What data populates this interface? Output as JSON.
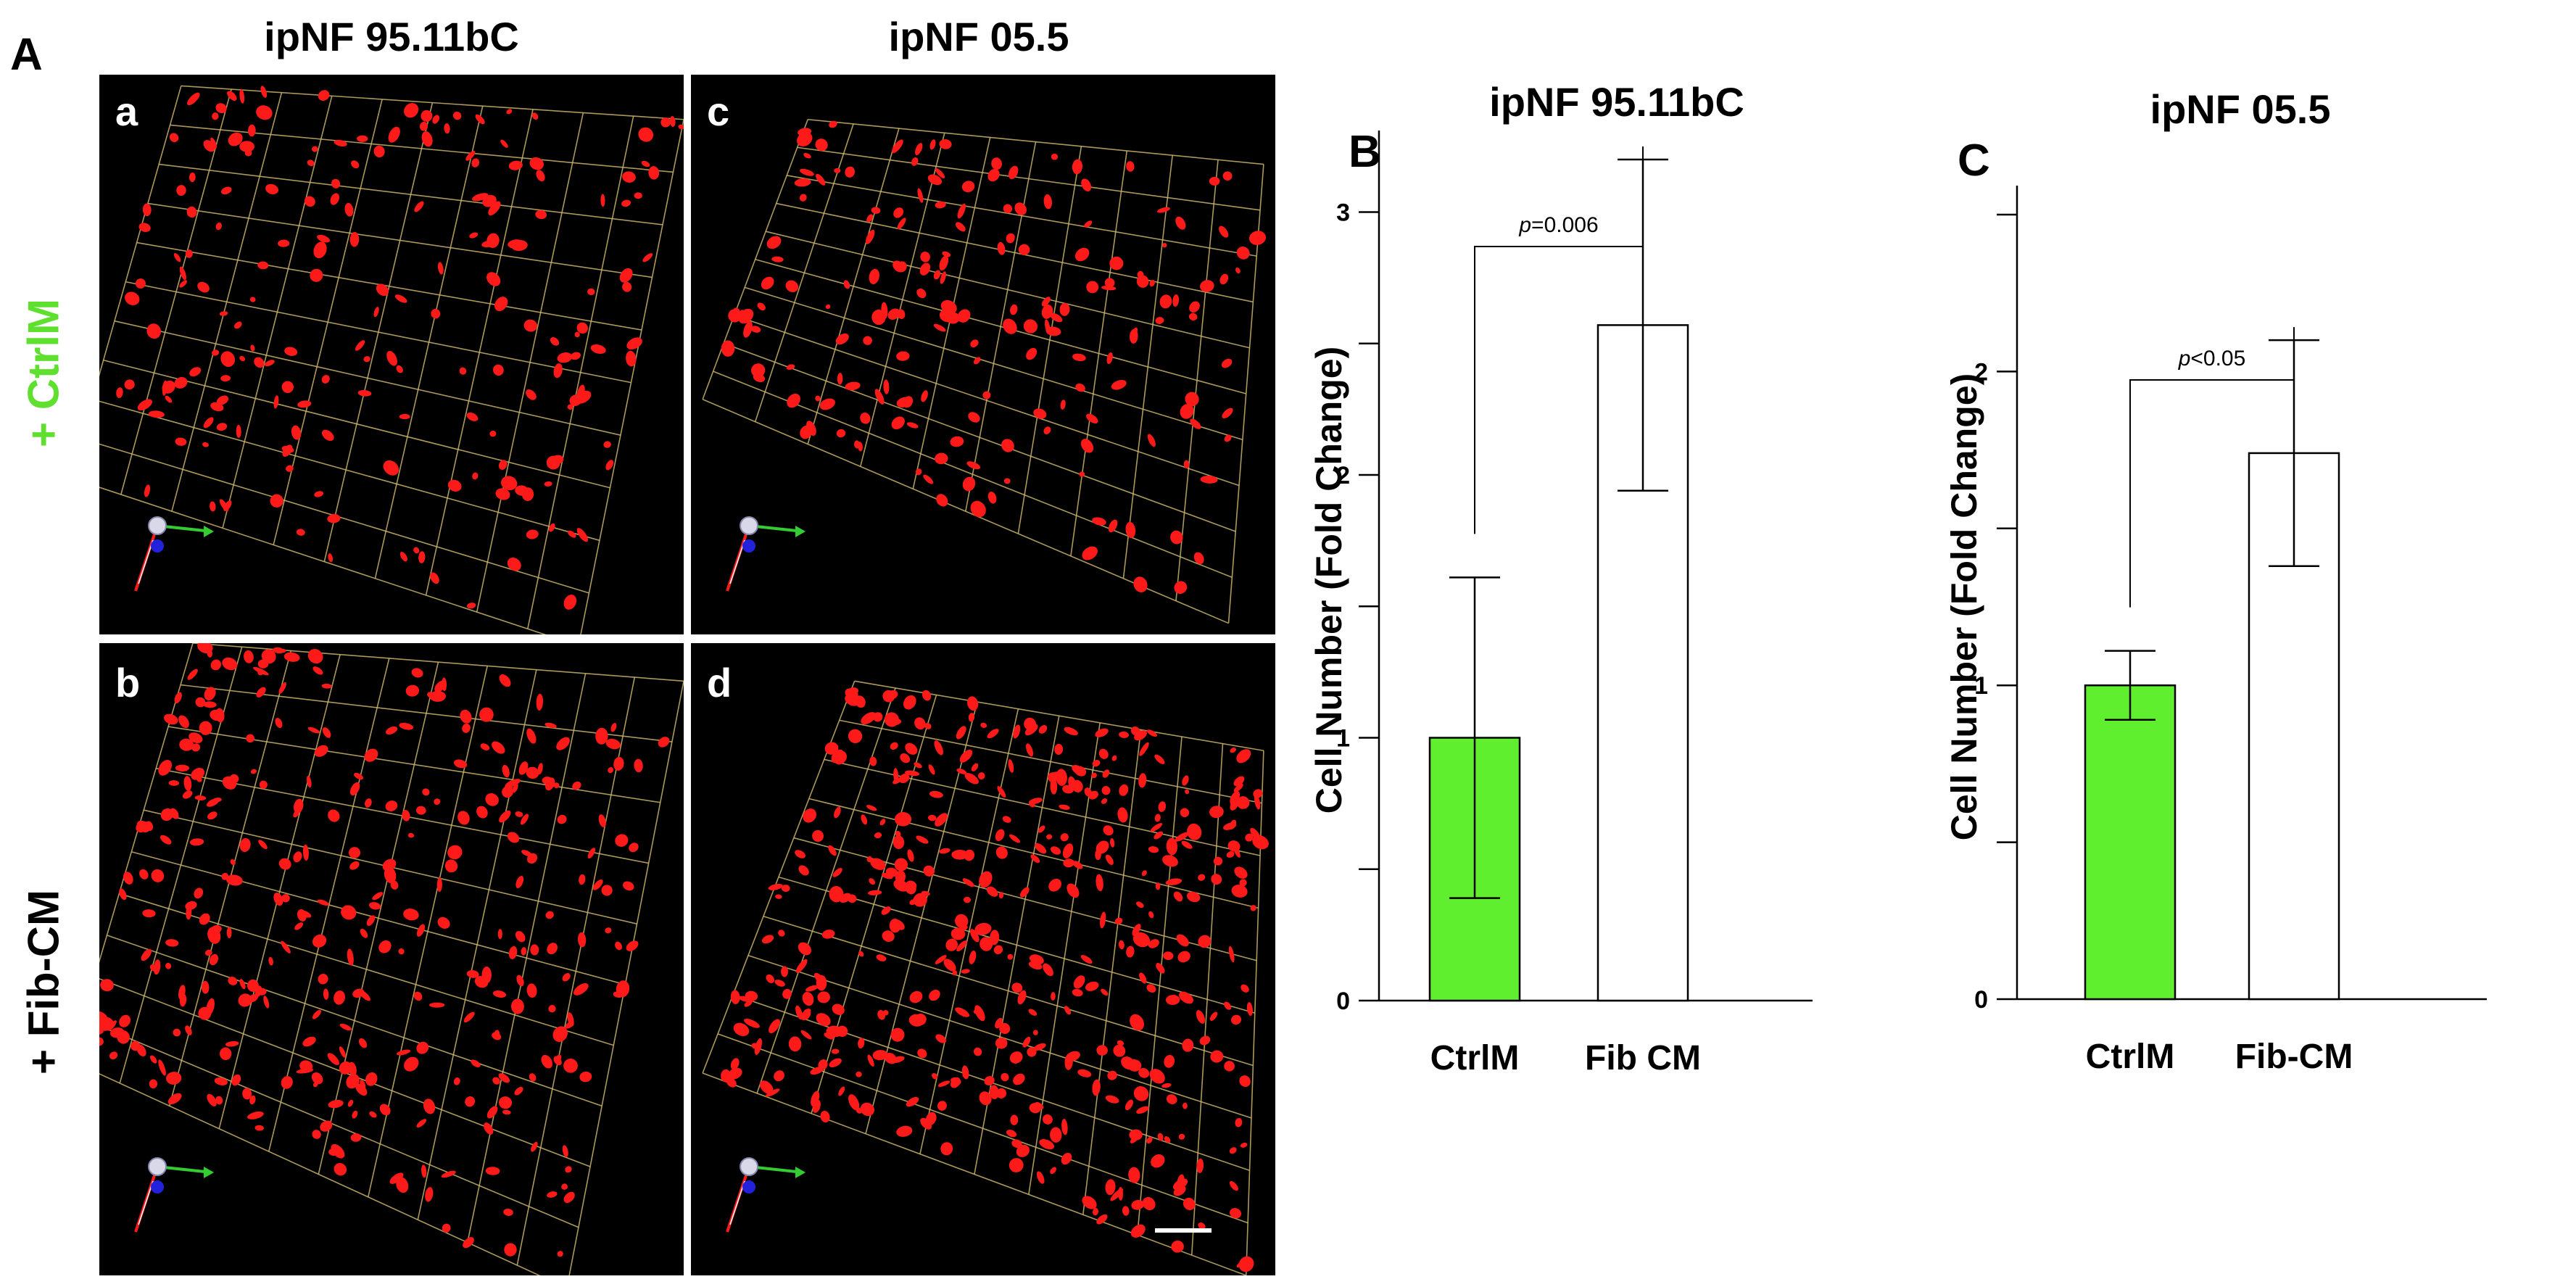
{
  "figure": {
    "panel_A_label": "A",
    "column_titles": [
      "ipNF 95.11bC",
      "ipNF 05.5"
    ],
    "row_labels": [
      {
        "text": "+ CtrlM",
        "color": "#5fe02f"
      },
      {
        "text": "+ Fib-CM",
        "color": "#000000"
      }
    ],
    "image_panels": [
      {
        "letter": "a",
        "condition": "CtrlM",
        "cell_line": "ipNF 95.11bC"
      },
      {
        "letter": "c",
        "condition": "CtrlM",
        "cell_line": "ipNF 05.5"
      },
      {
        "letter": "b",
        "condition": "Fib-CM",
        "cell_line": "ipNF 95.11bC"
      },
      {
        "letter": "d",
        "condition": "Fib-CM",
        "cell_line": "ipNF 05.5"
      }
    ],
    "colors": {
      "cells": "#ff1a1a",
      "grid": "#c8b46a",
      "bar_green": "#5fef2f",
      "axis_x": "#33cc33",
      "axis_z": "#2222dd"
    }
  },
  "chart_data": [
    {
      "type": "bar",
      "panel": "B",
      "title": "ipNF 95.11bC",
      "xlabel": "",
      "ylabel": "Cell Number (Fold Change)",
      "categories": [
        "CtrlM",
        "Fib CM"
      ],
      "values": [
        1.0,
        2.57
      ],
      "error": [
        0.61,
        0.63
      ],
      "bar_colors": [
        "#5fef2f",
        "#ffffff"
      ],
      "ylim": [
        0,
        3.2
      ],
      "yticks": [
        0,
        1,
        2,
        3
      ],
      "minor_ticks": [
        0.5,
        1.5,
        2.5
      ],
      "significance": {
        "label": "=0.006",
        "p": "p",
        "between": [
          0,
          1
        ]
      }
    },
    {
      "type": "bar",
      "panel": "C",
      "title": "ipNF 05.5",
      "xlabel": "",
      "ylabel": "Cell Number (Fold Change)",
      "categories": [
        "CtrlM",
        "Fib-CM"
      ],
      "values": [
        1.0,
        1.74
      ],
      "error": [
        0.11,
        0.36
      ],
      "bar_colors": [
        "#5fef2f",
        "#ffffff"
      ],
      "ylim": [
        0,
        2.5
      ],
      "yticks": [
        0,
        1,
        2
      ],
      "minor_ticks": [
        0.5,
        1.5,
        2.5
      ],
      "significance": {
        "label": "<0.05",
        "p": "p",
        "between": [
          0,
          1
        ]
      }
    }
  ]
}
